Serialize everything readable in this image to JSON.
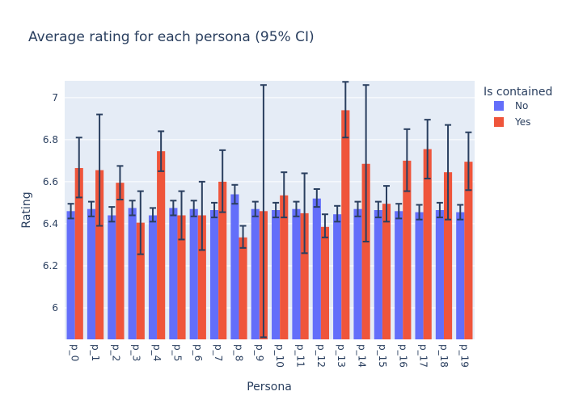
{
  "chart_data": {
    "type": "bar",
    "title": "Average rating for each persona (95% CI)",
    "xlabel": "Persona",
    "ylabel": "Rating",
    "ylim": [
      5.85,
      7.08
    ],
    "yticks": [
      6,
      6.2,
      6.4,
      6.6,
      6.8,
      7
    ],
    "categories": [
      "p_0",
      "p_1",
      "p_2",
      "p_3",
      "p_4",
      "p_5",
      "p_6",
      "p_7",
      "p_8",
      "p_9",
      "p_10",
      "p_11",
      "p_12",
      "p_13",
      "p_14",
      "p_15",
      "p_16",
      "p_17",
      "p_18",
      "p_19"
    ],
    "legend": {
      "title": "Is contained",
      "position": "top-right"
    },
    "grid": true,
    "colors": {
      "plot_bg": "#E5ECF6",
      "grid": "#ffffff",
      "error_bar": "#2a3f5f"
    },
    "series": [
      {
        "name": "No",
        "color": "#636EFA",
        "values": [
          6.46,
          6.47,
          6.44,
          6.475,
          6.44,
          6.475,
          6.47,
          6.465,
          6.54,
          6.47,
          6.465,
          6.47,
          6.52,
          6.445,
          6.47,
          6.465,
          6.46,
          6.455,
          6.465,
          6.455
        ],
        "error_low": [
          6.425,
          6.435,
          6.41,
          6.44,
          6.41,
          6.44,
          6.435,
          6.43,
          6.495,
          6.435,
          6.43,
          6.435,
          6.48,
          6.41,
          6.435,
          6.43,
          6.425,
          6.42,
          6.43,
          6.42
        ],
        "error_high": [
          6.495,
          6.505,
          6.48,
          6.51,
          6.475,
          6.51,
          6.51,
          6.5,
          6.585,
          6.505,
          6.5,
          6.505,
          6.565,
          6.485,
          6.505,
          6.505,
          6.495,
          6.49,
          6.5,
          6.49
        ]
      },
      {
        "name": "Yes",
        "color": "#EF553B",
        "values": [
          6.665,
          6.655,
          6.595,
          6.405,
          6.745,
          6.44,
          6.44,
          6.6,
          6.335,
          6.46,
          6.535,
          6.45,
          6.385,
          6.94,
          6.685,
          6.495,
          6.7,
          6.755,
          6.645,
          6.695
        ],
        "error_low": [
          6.525,
          6.39,
          6.515,
          6.255,
          6.65,
          6.325,
          6.275,
          6.455,
          6.285,
          5.86,
          6.43,
          6.26,
          6.335,
          6.81,
          6.315,
          6.41,
          6.555,
          6.615,
          6.42,
          6.56
        ],
        "error_high": [
          6.81,
          6.92,
          6.675,
          6.555,
          6.84,
          6.555,
          6.6,
          6.75,
          6.39,
          7.06,
          6.645,
          6.64,
          6.445,
          7.075,
          7.06,
          6.58,
          6.85,
          6.895,
          6.87,
          6.835
        ]
      }
    ]
  }
}
